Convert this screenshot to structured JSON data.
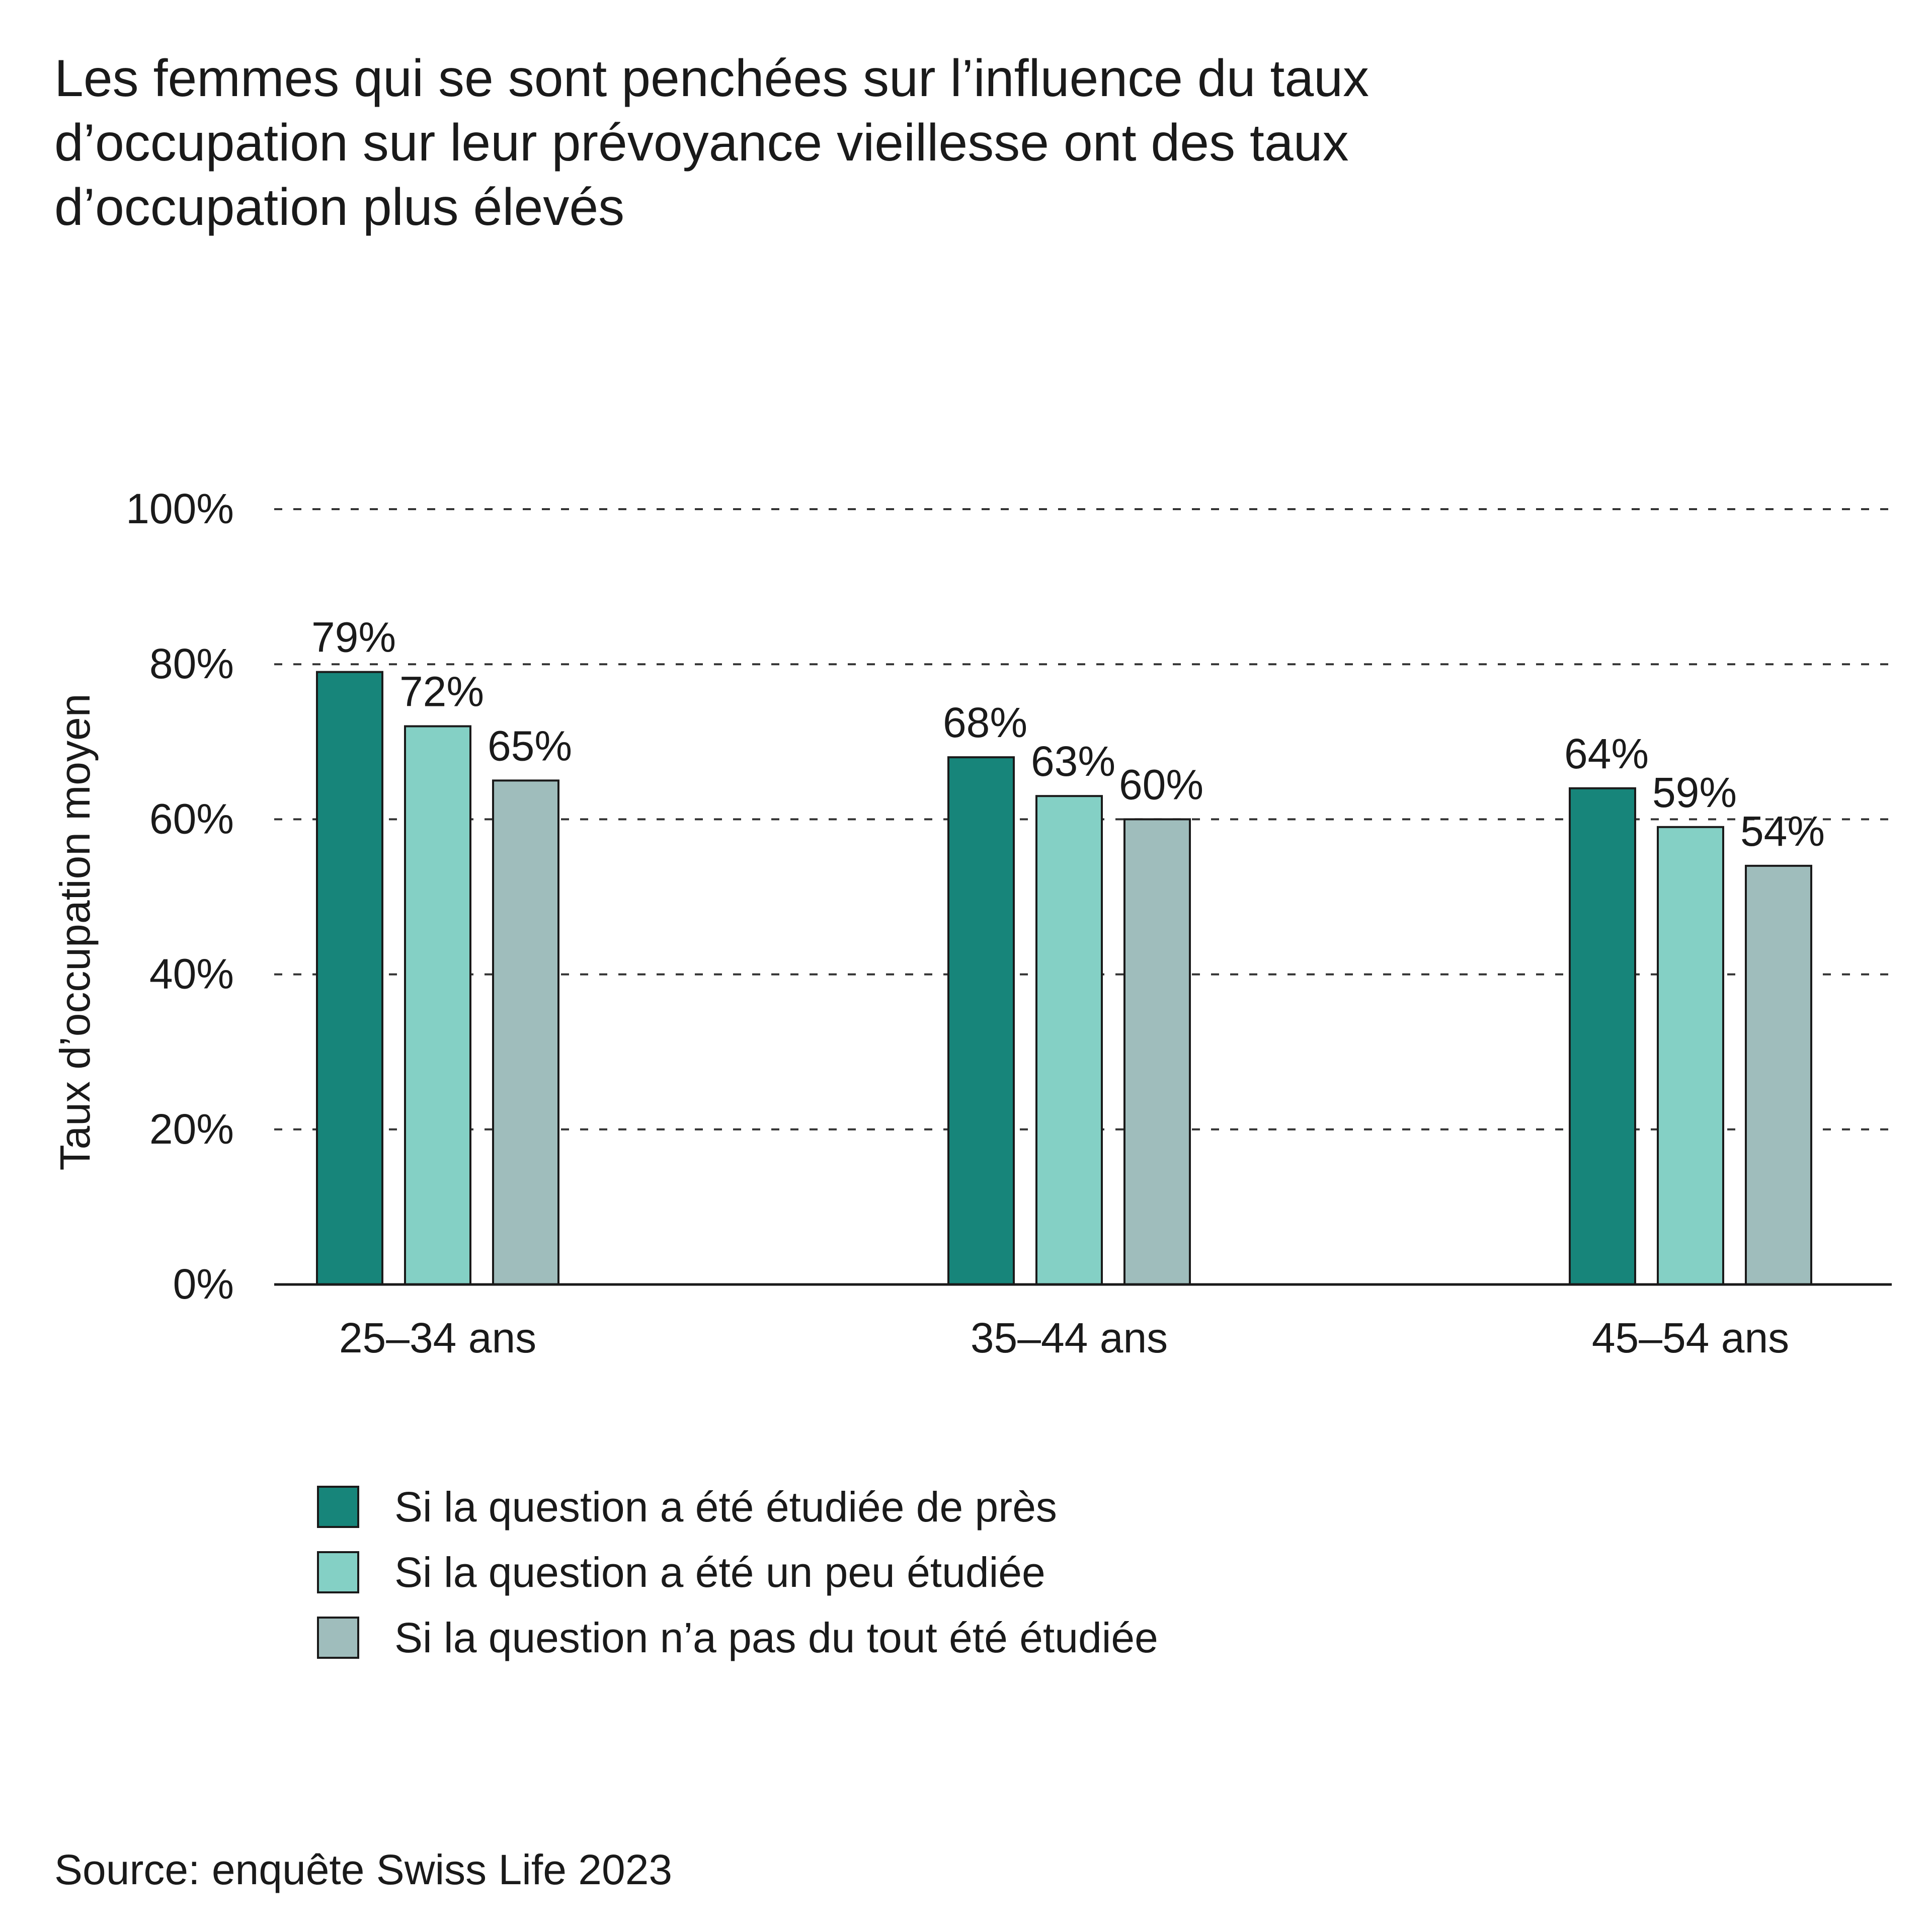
{
  "title": "Les femmes qui se sont penchées sur l’influence du taux\nd’occupation sur leur prévoyance vieillesse ont des taux\nd’occupation plus élevés",
  "source": "Source: enquête Swiss Life 2023",
  "colors": {
    "series_0": "#17857a",
    "series_1": "#84d0c5",
    "series_2": "#9fbdbc",
    "axis": "#1a1a1a",
    "grid": "#333333"
  },
  "chart_data": {
    "type": "bar",
    "title": "Les femmes qui se sont penchées sur l’influence du taux d’occupation sur leur prévoyance vieillesse ont des taux d’occupation plus élevés",
    "ylabel": "Taux d’occupation moyen",
    "xlabel": "",
    "ylim": [
      0,
      100
    ],
    "yticks": [
      "0%",
      "20%",
      "40%",
      "60%",
      "80%",
      "100%"
    ],
    "ytick_values": [
      0,
      20,
      40,
      60,
      80,
      100
    ],
    "grid": true,
    "legend_position": "bottom",
    "categories": [
      "25–34 ans",
      "35–44 ans",
      "45–54 ans"
    ],
    "series": [
      {
        "name": "Si la question a été étudiée de près",
        "values": [
          79,
          68,
          64
        ],
        "labels": [
          "79%",
          "68%",
          "64%"
        ]
      },
      {
        "name": "Si la question a été un peu étudiée",
        "values": [
          72,
          63,
          59
        ],
        "labels": [
          "72%",
          "63%",
          "59%"
        ]
      },
      {
        "name": "Si la question n’a pas du tout été étudiée",
        "values": [
          65,
          60,
          54
        ],
        "labels": [
          "65%",
          "60%",
          "54%"
        ]
      }
    ]
  }
}
